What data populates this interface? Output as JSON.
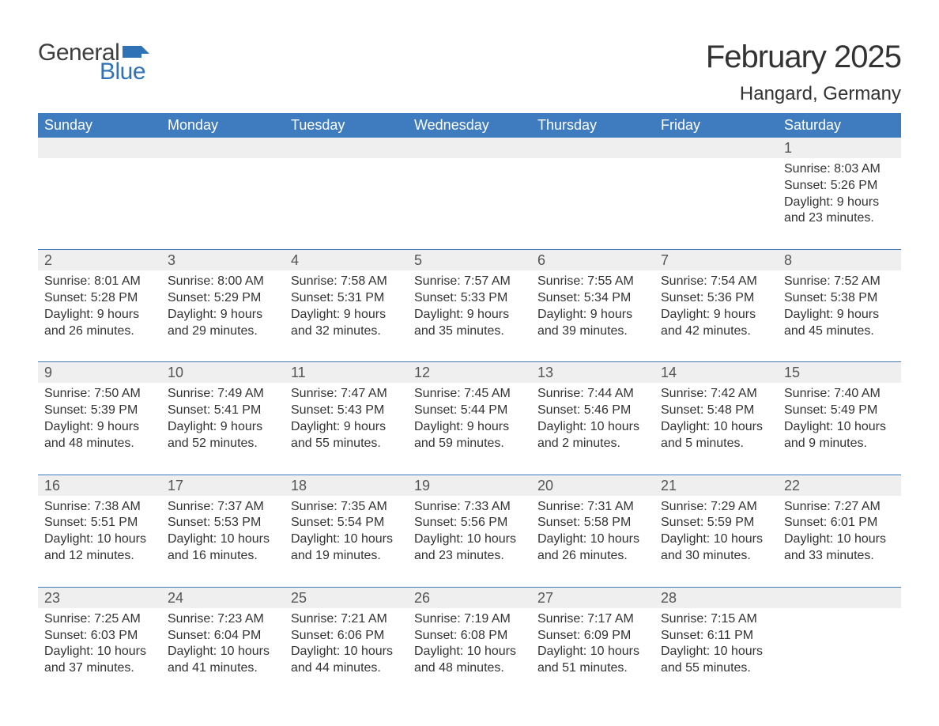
{
  "logo": {
    "word1": "General",
    "word2": "Blue",
    "word1_color": "#3f3f3f",
    "word2_color": "#2f72b6",
    "flag_color": "#2f72b6"
  },
  "title": "February 2025",
  "location": "Hangard, Germany",
  "colors": {
    "header_bg": "#3f7cbf",
    "header_text": "#ffffff",
    "daynum_bg": "#efefef",
    "daynum_text": "#555555",
    "body_text": "#333333",
    "rule": "#3f7cbf",
    "page_bg": "#ffffff"
  },
  "typography": {
    "title_fontsize": 40,
    "location_fontsize": 24,
    "header_fontsize": 18,
    "daynum_fontsize": 18,
    "body_fontsize": 16,
    "logo_fontsize": 30
  },
  "columns": [
    "Sunday",
    "Monday",
    "Tuesday",
    "Wednesday",
    "Thursday",
    "Friday",
    "Saturday"
  ],
  "weeks": [
    [
      null,
      null,
      null,
      null,
      null,
      null,
      {
        "n": "1",
        "sunrise": "8:03 AM",
        "sunset": "5:26 PM",
        "dl1": "Daylight: 9 hours",
        "dl2": "and 23 minutes."
      }
    ],
    [
      {
        "n": "2",
        "sunrise": "8:01 AM",
        "sunset": "5:28 PM",
        "dl1": "Daylight: 9 hours",
        "dl2": "and 26 minutes."
      },
      {
        "n": "3",
        "sunrise": "8:00 AM",
        "sunset": "5:29 PM",
        "dl1": "Daylight: 9 hours",
        "dl2": "and 29 minutes."
      },
      {
        "n": "4",
        "sunrise": "7:58 AM",
        "sunset": "5:31 PM",
        "dl1": "Daylight: 9 hours",
        "dl2": "and 32 minutes."
      },
      {
        "n": "5",
        "sunrise": "7:57 AM",
        "sunset": "5:33 PM",
        "dl1": "Daylight: 9 hours",
        "dl2": "and 35 minutes."
      },
      {
        "n": "6",
        "sunrise": "7:55 AM",
        "sunset": "5:34 PM",
        "dl1": "Daylight: 9 hours",
        "dl2": "and 39 minutes."
      },
      {
        "n": "7",
        "sunrise": "7:54 AM",
        "sunset": "5:36 PM",
        "dl1": "Daylight: 9 hours",
        "dl2": "and 42 minutes."
      },
      {
        "n": "8",
        "sunrise": "7:52 AM",
        "sunset": "5:38 PM",
        "dl1": "Daylight: 9 hours",
        "dl2": "and 45 minutes."
      }
    ],
    [
      {
        "n": "9",
        "sunrise": "7:50 AM",
        "sunset": "5:39 PM",
        "dl1": "Daylight: 9 hours",
        "dl2": "and 48 minutes."
      },
      {
        "n": "10",
        "sunrise": "7:49 AM",
        "sunset": "5:41 PM",
        "dl1": "Daylight: 9 hours",
        "dl2": "and 52 minutes."
      },
      {
        "n": "11",
        "sunrise": "7:47 AM",
        "sunset": "5:43 PM",
        "dl1": "Daylight: 9 hours",
        "dl2": "and 55 minutes."
      },
      {
        "n": "12",
        "sunrise": "7:45 AM",
        "sunset": "5:44 PM",
        "dl1": "Daylight: 9 hours",
        "dl2": "and 59 minutes."
      },
      {
        "n": "13",
        "sunrise": "7:44 AM",
        "sunset": "5:46 PM",
        "dl1": "Daylight: 10 hours",
        "dl2": "and 2 minutes."
      },
      {
        "n": "14",
        "sunrise": "7:42 AM",
        "sunset": "5:48 PM",
        "dl1": "Daylight: 10 hours",
        "dl2": "and 5 minutes."
      },
      {
        "n": "15",
        "sunrise": "7:40 AM",
        "sunset": "5:49 PM",
        "dl1": "Daylight: 10 hours",
        "dl2": "and 9 minutes."
      }
    ],
    [
      {
        "n": "16",
        "sunrise": "7:38 AM",
        "sunset": "5:51 PM",
        "dl1": "Daylight: 10 hours",
        "dl2": "and 12 minutes."
      },
      {
        "n": "17",
        "sunrise": "7:37 AM",
        "sunset": "5:53 PM",
        "dl1": "Daylight: 10 hours",
        "dl2": "and 16 minutes."
      },
      {
        "n": "18",
        "sunrise": "7:35 AM",
        "sunset": "5:54 PM",
        "dl1": "Daylight: 10 hours",
        "dl2": "and 19 minutes."
      },
      {
        "n": "19",
        "sunrise": "7:33 AM",
        "sunset": "5:56 PM",
        "dl1": "Daylight: 10 hours",
        "dl2": "and 23 minutes."
      },
      {
        "n": "20",
        "sunrise": "7:31 AM",
        "sunset": "5:58 PM",
        "dl1": "Daylight: 10 hours",
        "dl2": "and 26 minutes."
      },
      {
        "n": "21",
        "sunrise": "7:29 AM",
        "sunset": "5:59 PM",
        "dl1": "Daylight: 10 hours",
        "dl2": "and 30 minutes."
      },
      {
        "n": "22",
        "sunrise": "7:27 AM",
        "sunset": "6:01 PM",
        "dl1": "Daylight: 10 hours",
        "dl2": "and 33 minutes."
      }
    ],
    [
      {
        "n": "23",
        "sunrise": "7:25 AM",
        "sunset": "6:03 PM",
        "dl1": "Daylight: 10 hours",
        "dl2": "and 37 minutes."
      },
      {
        "n": "24",
        "sunrise": "7:23 AM",
        "sunset": "6:04 PM",
        "dl1": "Daylight: 10 hours",
        "dl2": "and 41 minutes."
      },
      {
        "n": "25",
        "sunrise": "7:21 AM",
        "sunset": "6:06 PM",
        "dl1": "Daylight: 10 hours",
        "dl2": "and 44 minutes."
      },
      {
        "n": "26",
        "sunrise": "7:19 AM",
        "sunset": "6:08 PM",
        "dl1": "Daylight: 10 hours",
        "dl2": "and 48 minutes."
      },
      {
        "n": "27",
        "sunrise": "7:17 AM",
        "sunset": "6:09 PM",
        "dl1": "Daylight: 10 hours",
        "dl2": "and 51 minutes."
      },
      {
        "n": "28",
        "sunrise": "7:15 AM",
        "sunset": "6:11 PM",
        "dl1": "Daylight: 10 hours",
        "dl2": "and 55 minutes."
      },
      null
    ]
  ],
  "labels": {
    "sunrise": "Sunrise: ",
    "sunset": "Sunset: "
  }
}
